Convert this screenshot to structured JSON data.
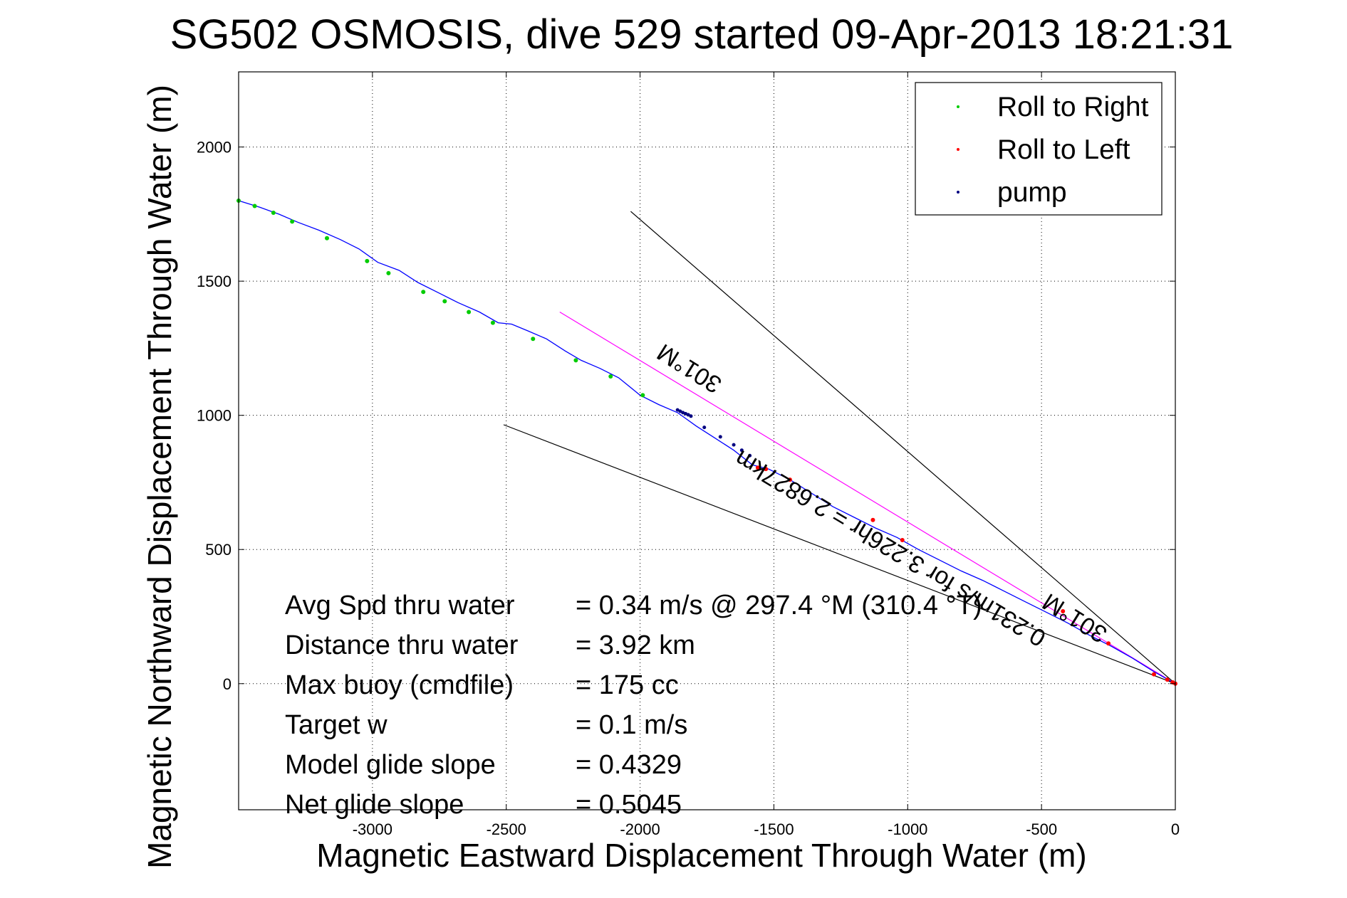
{
  "chart_data": {
    "type": "line",
    "title": "SG502 OSMOSIS, dive 529 started 09-Apr-2013 18:21:31",
    "xlabel": "Magnetic Eastward Displacement Through Water (m)",
    "ylabel": "Magnetic Northward Displacement Through Water (m)",
    "xlim": [
      -3500,
      0
    ],
    "ylim": [
      -470,
      2280
    ],
    "xticks": [
      -3000,
      -2500,
      -2000,
      -1500,
      -1000,
      -500,
      0
    ],
    "yticks": [
      0,
      500,
      1000,
      1500,
      2000
    ],
    "grid": true,
    "legend_position": "top-right",
    "legend": [
      {
        "label": "Roll to Right",
        "color": "#00cc00"
      },
      {
        "label": "Roll to Left",
        "color": "#ff0000"
      },
      {
        "label": "pump",
        "color": "#000080"
      }
    ],
    "track": {
      "color": "#0000ff",
      "x": [
        -3500,
        -3420,
        -3350,
        -3280,
        -3200,
        -3120,
        -3050,
        -2980,
        -2900,
        -2830,
        -2750,
        -2680,
        -2600,
        -2530,
        -2480,
        -2420,
        -2350,
        -2280,
        -2220,
        -2150,
        -2080,
        -2000,
        -1930,
        -1860,
        -1790,
        -1720,
        -1650,
        -1580,
        -1520,
        -1440,
        -1360,
        -1280,
        -1200,
        -1120,
        -1040,
        -960,
        -880,
        -800,
        -720,
        -640,
        -560,
        -480,
        -400,
        -320,
        -240,
        -160,
        -80,
        0
      ],
      "y": [
        1800,
        1775,
        1750,
        1720,
        1690,
        1655,
        1620,
        1570,
        1540,
        1495,
        1455,
        1420,
        1385,
        1345,
        1340,
        1315,
        1285,
        1240,
        1205,
        1175,
        1140,
        1075,
        1040,
        1010,
        960,
        915,
        870,
        815,
        800,
        760,
        710,
        660,
        620,
        580,
        545,
        500,
        460,
        420,
        385,
        345,
        305,
        265,
        225,
        180,
        140,
        95,
        45,
        0
      ]
    },
    "roll_right_points": {
      "color": "#00cc00",
      "x": [
        -3500,
        -3440,
        -3370,
        -3300,
        -3170,
        -3020,
        -2940,
        -2810,
        -2730,
        -2640,
        -2550,
        -2400,
        -2240,
        -2110,
        -1990
      ],
      "y": [
        1800,
        1780,
        1755,
        1722,
        1660,
        1575,
        1530,
        1460,
        1425,
        1385,
        1345,
        1285,
        1205,
        1145,
        1075
      ]
    },
    "roll_left_points": {
      "color": "#ff0000",
      "x": [
        -1560,
        -1530,
        -1440,
        -1130,
        -1020,
        -420,
        -250,
        -80,
        -30,
        -10,
        0
      ],
      "y": [
        805,
        800,
        760,
        610,
        535,
        270,
        150,
        35,
        15,
        5,
        0
      ]
    },
    "pump_points": {
      "color": "#000080",
      "x": [
        -1860,
        -1850,
        -1840,
        -1830,
        -1820,
        -1810,
        -1760,
        -1700,
        -1650,
        -1620,
        -1590
      ],
      "y": [
        1020,
        1015,
        1010,
        1006,
        1002,
        997,
        955,
        920,
        890,
        870,
        850
      ]
    },
    "reference_lines": [
      {
        "color": "#000000",
        "x": [
          -2035,
          0
        ],
        "y": [
          1760,
          0
        ]
      },
      {
        "color": "#000000",
        "x": [
          -2510,
          0
        ],
        "y": [
          965,
          0
        ]
      },
      {
        "color": "#ff00ff",
        "x": [
          -2300,
          0
        ],
        "y": [
          1385,
          0
        ]
      }
    ],
    "annotations": [
      {
        "text": "301°M",
        "x": -1800,
        "y": 1200,
        "angle": 32
      },
      {
        "text": "301°M",
        "x": -360,
        "y": 270,
        "angle": 32
      },
      {
        "text": "0.231m/s for 3.226hr = 2.6827km",
        "x": -1050,
        "y": 530,
        "angle": 31
      }
    ],
    "stats": [
      {
        "label": "Avg Spd thru water",
        "value": "=  0.34 m/s @ 297.4 °M (310.4 °T)"
      },
      {
        "label": "Distance thru water",
        "value": "=  3.92 km"
      },
      {
        "label": "Max buoy (cmdfile)",
        "value": "= 175 cc"
      },
      {
        "label": "Target w",
        "value": "= 0.1 m/s"
      },
      {
        "label": "Model glide slope",
        "value": "= 0.4329"
      },
      {
        "label": "Net glide slope",
        "value": "= 0.5045"
      }
    ]
  }
}
